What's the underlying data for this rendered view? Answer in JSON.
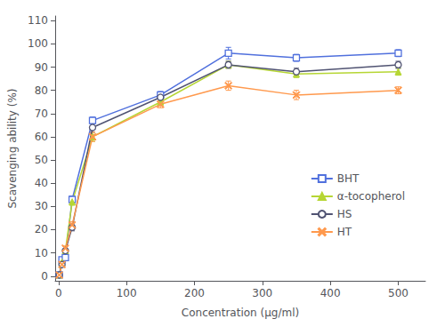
{
  "chart_data": {
    "type": "line",
    "xlabel": "Concentration (μg/ml)",
    "ylabel": "Scavenging ability (%)",
    "x": [
      1,
      5,
      10,
      20,
      50,
      150,
      250,
      350,
      500
    ],
    "series": [
      {
        "name": "BHT",
        "marker": "open square",
        "values": [
          0.5,
          7,
          8,
          33,
          67,
          78,
          96,
          94,
          96
        ],
        "yerr": [
          0.3,
          0.5,
          0.5,
          1.5,
          1.5,
          1.5,
          2.5,
          1.5,
          1.5
        ]
      },
      {
        "name": "α-tocopherol",
        "marker": "triangle",
        "values": [
          0.5,
          6,
          11,
          32,
          60,
          75,
          91,
          87,
          88
        ],
        "yerr": [
          0.3,
          0.5,
          0.5,
          1.5,
          2.0,
          1.5,
          1.5,
          1.5,
          1.5
        ]
      },
      {
        "name": "HS",
        "marker": "open circle",
        "values": [
          0.5,
          5,
          11,
          21,
          64,
          77,
          91,
          88,
          91
        ],
        "yerr": [
          0.3,
          0.5,
          0.5,
          1.5,
          2.0,
          1.5,
          1.5,
          1.5,
          1.5
        ]
      },
      {
        "name": "HT",
        "marker": "x",
        "values": [
          0.5,
          5,
          12,
          22,
          60,
          74,
          82,
          78,
          80
        ],
        "yerr": [
          0.3,
          0.5,
          1.0,
          1.5,
          2.0,
          1.5,
          2.0,
          2.0,
          1.5
        ]
      }
    ],
    "xlim": [
      -5,
      540
    ],
    "xticks": [
      0,
      100,
      200,
      300,
      400,
      500
    ],
    "ylim": [
      -2,
      112
    ],
    "yticks": [
      0,
      10,
      20,
      30,
      40,
      50,
      60,
      70,
      80,
      90,
      100,
      110
    ],
    "grid": false,
    "legend": "right"
  }
}
